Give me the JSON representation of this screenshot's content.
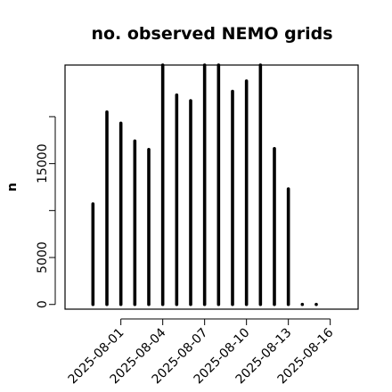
{
  "chart_data": {
    "type": "bar",
    "title": "no. observed NEMO grids",
    "xlabel": "",
    "ylabel": "n",
    "x": [
      "2025-07-30",
      "2025-07-31",
      "2025-08-01",
      "2025-08-02",
      "2025-08-03",
      "2025-08-04",
      "2025-08-05",
      "2025-08-06",
      "2025-08-07",
      "2025-08-08",
      "2025-08-09",
      "2025-08-10",
      "2025-08-11",
      "2025-08-12",
      "2025-08-13",
      "2025-08-14",
      "2025-08-15",
      "2025-08-16"
    ],
    "values": [
      10700,
      20500,
      19300,
      17400,
      16500,
      25500,
      22300,
      21700,
      25500,
      25500,
      22700,
      23800,
      25500,
      16600,
      12300,
      0,
      0,
      0
    ],
    "point_only": [
      false,
      false,
      false,
      false,
      false,
      false,
      false,
      false,
      false,
      false,
      false,
      false,
      false,
      false,
      false,
      true,
      true,
      false
    ],
    "x_ticks": [
      "2025-08-01",
      "2025-08-04",
      "2025-08-07",
      "2025-08-10",
      "2025-08-13",
      "2025-08-16"
    ],
    "y_ticks": [
      0,
      5000,
      15000
    ],
    "ylim": [
      -500,
      25500
    ],
    "xlim": [
      "2025-07-28",
      "2025-08-18"
    ],
    "grid": false,
    "legend": "none"
  }
}
